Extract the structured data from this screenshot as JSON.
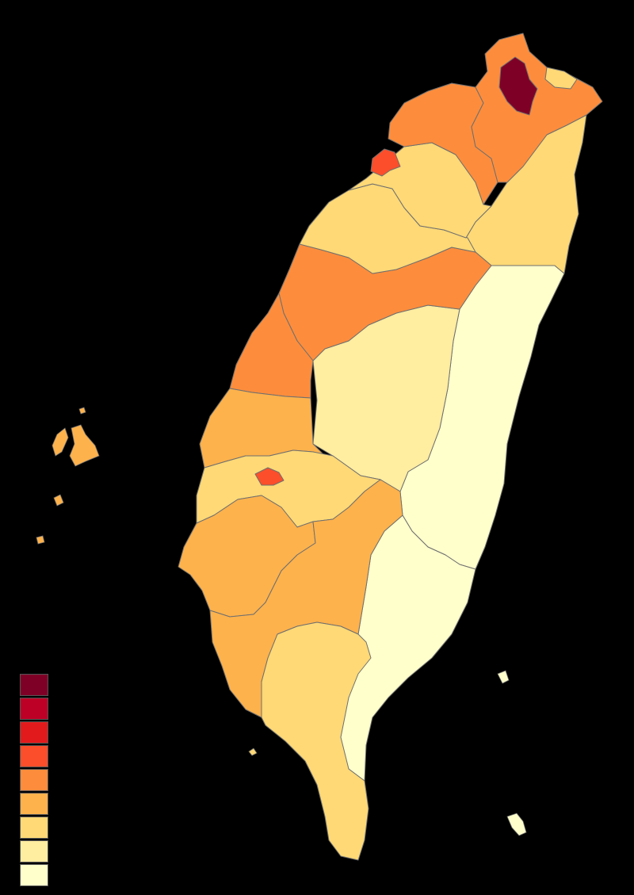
{
  "map": {
    "region": "Taiwan",
    "classes": [
      "#7f0027",
      "#bd0026",
      "#e31a1c",
      "#fc4e2a",
      "#fd8d3c",
      "#feb24c",
      "#fed976",
      "#ffeda0",
      "#ffffcc"
    ],
    "background": "#000000",
    "border_color": "#6f6f6f"
  }
}
